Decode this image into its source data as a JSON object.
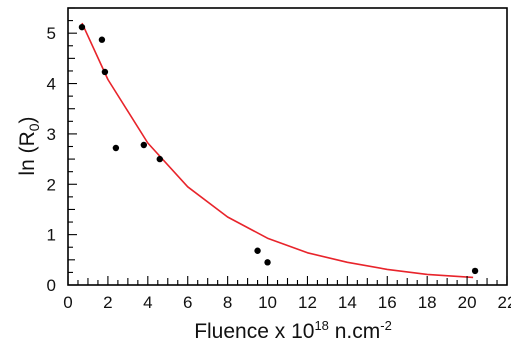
{
  "chart_data": {
    "type": "scatter",
    "xlabel": "Fluence x 10",
    "xlabel_sup": "18",
    "xlabel_unit": " n.cm",
    "xlabel_unit_sup": "-2",
    "ylabel": "ln (R",
    "ylabel_sub": "0",
    "ylabel_end": ")",
    "xlim": [
      0,
      22
    ],
    "ylim": [
      0,
      5.5
    ],
    "x_ticks": [
      0,
      2,
      4,
      6,
      8,
      10,
      12,
      14,
      16,
      18,
      20,
      22
    ],
    "y_ticks": [
      0,
      1,
      2,
      3,
      4,
      5
    ],
    "grid": false,
    "points_color": "#000000",
    "fit_color": "#e8242b",
    "points": [
      {
        "x": 0.7,
        "y": 5.12
      },
      {
        "x": 1.7,
        "y": 4.87
      },
      {
        "x": 1.85,
        "y": 4.23
      },
      {
        "x": 2.4,
        "y": 2.72
      },
      {
        "x": 3.8,
        "y": 2.78
      },
      {
        "x": 4.6,
        "y": 2.5
      },
      {
        "x": 9.5,
        "y": 0.68
      },
      {
        "x": 10.0,
        "y": 0.45
      },
      {
        "x": 20.4,
        "y": 0.28
      }
    ],
    "fit": {
      "type": "exponential",
      "x_range": [
        0.7,
        20.3
      ],
      "curve": [
        {
          "x": 0.7,
          "y": 5.2
        },
        {
          "x": 2.0,
          "y": 4.08
        },
        {
          "x": 4.0,
          "y": 2.82
        },
        {
          "x": 6.0,
          "y": 1.95
        },
        {
          "x": 8.0,
          "y": 1.35
        },
        {
          "x": 10.0,
          "y": 0.93
        },
        {
          "x": 12.0,
          "y": 0.64
        },
        {
          "x": 14.0,
          "y": 0.45
        },
        {
          "x": 16.0,
          "y": 0.31
        },
        {
          "x": 18.0,
          "y": 0.21
        },
        {
          "x": 20.3,
          "y": 0.15
        }
      ]
    }
  }
}
